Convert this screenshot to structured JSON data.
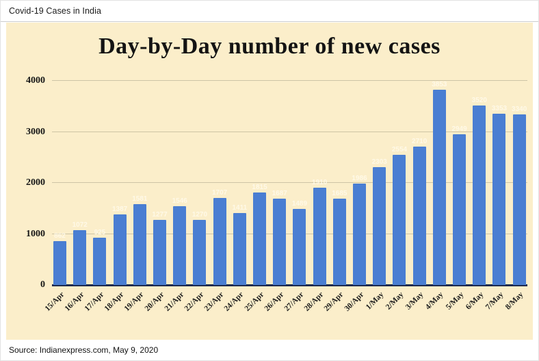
{
  "header": {
    "title": "Covid-19 Cases in India"
  },
  "footer": {
    "source": "Source: Indianexpress.com, May 9, 2020"
  },
  "chart_data": {
    "type": "bar",
    "title": "Day-by-Day number of new cases",
    "categories": [
      "15/Apr",
      "16/Apr",
      "17/Apr",
      "18/Apr",
      "19/Apr",
      "20/Apr",
      "21/Apr",
      "22/Apr",
      "23/Apr",
      "24/Apr",
      "25/Apr",
      "26/Apr",
      "27/Apr",
      "28/Apr",
      "29/Apr",
      "30/Apr",
      "1/May",
      "2/May",
      "3/May",
      "4/May",
      "5/May",
      "6/May",
      "7/May",
      "8/May"
    ],
    "values": [
      862,
      1072,
      925,
      1387,
      1581,
      1277,
      1546,
      1270,
      1707,
      1411,
      1815,
      1687,
      1489,
      1910,
      1685,
      1986,
      2303,
      2554,
      2710,
      3853,
      2949,
      3520,
      3353,
      3340
    ],
    "xlabel": "",
    "ylabel": "",
    "y_ticks": [
      0,
      1000,
      2000,
      3000,
      4000
    ],
    "ylim": [
      0,
      4000
    ],
    "grid": true,
    "legend": "none",
    "colors": {
      "bar": "#4a7ed2",
      "panel_background": "#fbeeca",
      "gridline": "#cdc4a5",
      "baseline": "#1c2b4e",
      "bar_label": "#fffae9",
      "title_text": "#141414"
    }
  }
}
